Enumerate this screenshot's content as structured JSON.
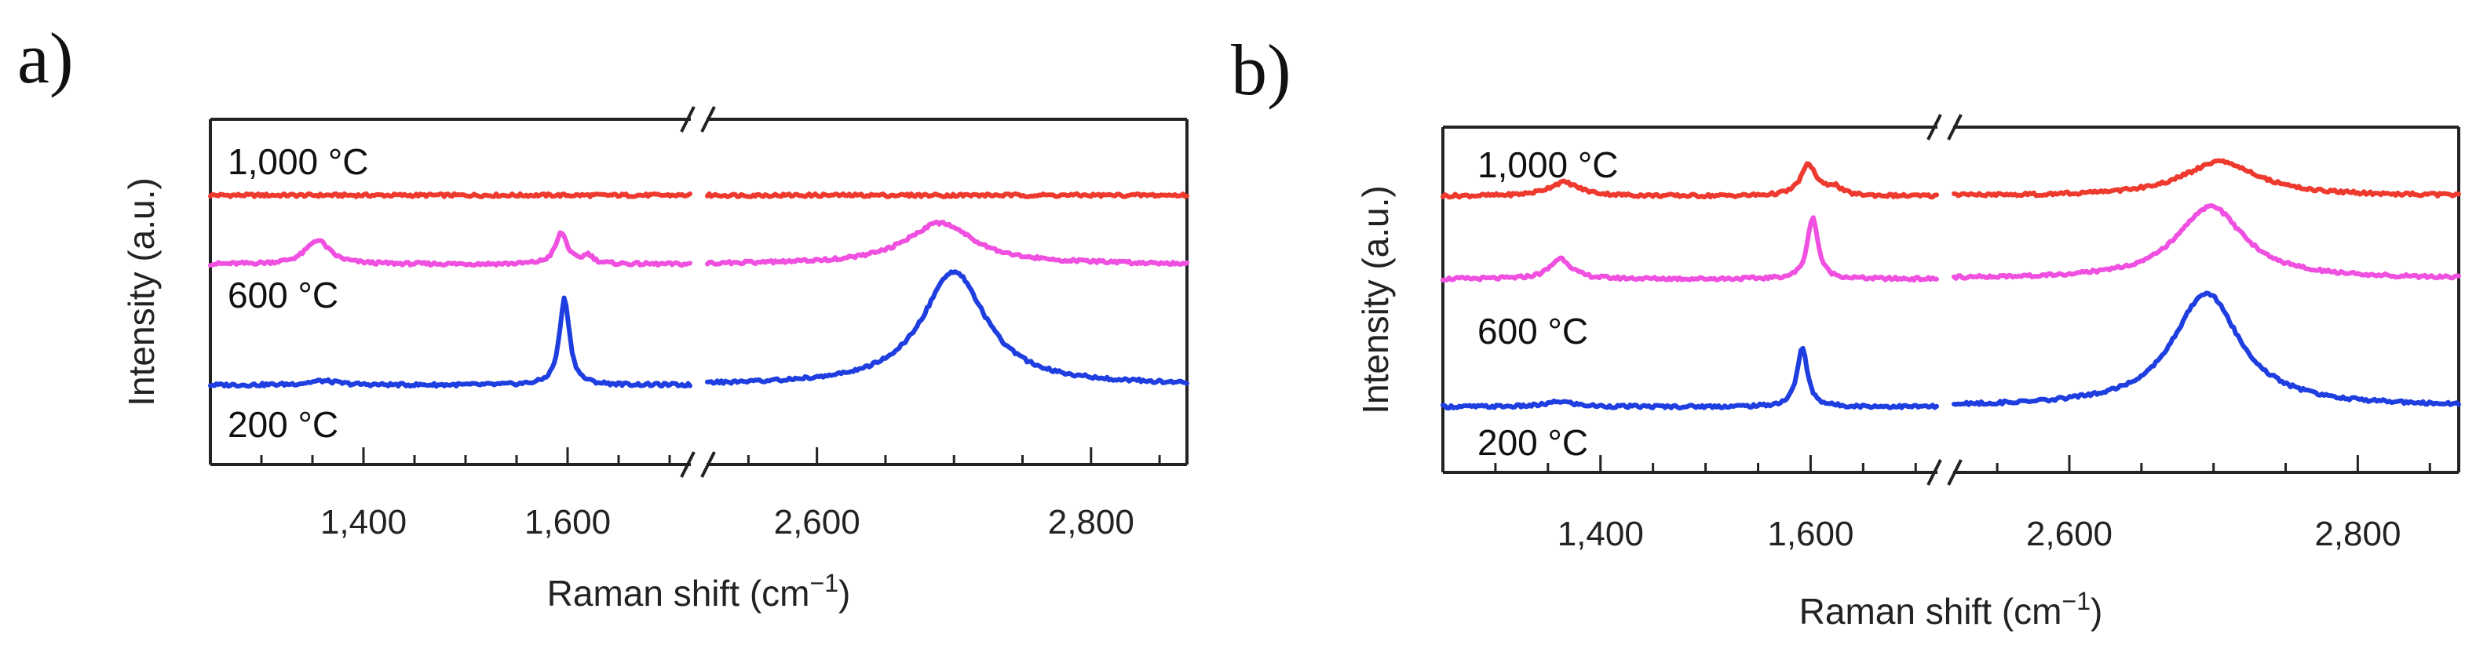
{
  "figure": {
    "panel_a_label": "a)",
    "panel_b_label": "b)"
  },
  "chart_data": [
    {
      "type": "line",
      "panel": "a)",
      "title": "",
      "xlabel": "Raman shift (cm",
      "xlabel_superscript": "−1",
      "xlabel_suffix": ")",
      "ylabel": "Intensity (a.u.)",
      "x_axis": {
        "broken": true,
        "segments": [
          {
            "range": [
              1250,
              1720
            ],
            "ticks": [
              1400,
              1600
            ],
            "tick_labels": [
              "1,400",
              "1,600"
            ],
            "minor_step": 50
          },
          {
            "range": [
              2520,
              2870
            ],
            "ticks": [
              2600,
              2800
            ],
            "tick_labels": [
              "2,600",
              "2,800"
            ],
            "minor_step": 50
          }
        ]
      },
      "y_range": [
        0,
        100
      ],
      "series": [
        {
          "name": "1,000 °C",
          "color": "#ee3a2e",
          "baseline": 78,
          "peaks": []
        },
        {
          "name": "600 °C",
          "color": "#f050e0",
          "baseline": 58,
          "peaks": [
            {
              "x": 1355,
              "height": 7,
              "width": 14
            },
            {
              "x": 1594,
              "height": 9,
              "width": 7
            },
            {
              "x": 1620,
              "height": 2.5,
              "width": 6
            },
            {
              "x": 2690,
              "height": 12,
              "width": 30
            }
          ]
        },
        {
          "name": "200 °C",
          "color": "#1f3ee0",
          "baseline": 23,
          "peaks": [
            {
              "x": 1360,
              "height": 1.2,
              "width": 18
            },
            {
              "x": 1597,
              "height": 25,
              "width": 6
            },
            {
              "x": 2700,
              "height": 33,
              "width": 28
            }
          ]
        }
      ],
      "series_labels": [
        "1,000 °C",
        "600 °C",
        "200 °C"
      ]
    },
    {
      "type": "line",
      "panel": "b)",
      "title": "",
      "xlabel": "Raman shift (cm",
      "xlabel_superscript": "−1",
      "xlabel_suffix": ")",
      "ylabel": "Intensity (a.u.)",
      "x_axis": {
        "broken": true,
        "segments": [
          {
            "range": [
              1250,
              1720
            ],
            "ticks": [
              1400,
              1600
            ],
            "tick_labels": [
              "1,400",
              "1,600"
            ],
            "minor_step": 50
          },
          {
            "range": [
              2520,
              2870
            ],
            "ticks": [
              2600,
              2800
            ],
            "tick_labels": [
              "2,600",
              "2,800"
            ],
            "minor_step": 50
          }
        ]
      },
      "y_range": [
        0,
        100
      ],
      "series": [
        {
          "name": "1,000 °C",
          "color": "#ee3a2e",
          "baseline": 80,
          "peaks": [
            {
              "x": 1365,
              "height": 4,
              "width": 18
            },
            {
              "x": 1598,
              "height": 9,
              "width": 9
            },
            {
              "x": 1622,
              "height": 2.5,
              "width": 8
            },
            {
              "x": 2705,
              "height": 10,
              "width": 32
            }
          ]
        },
        {
          "name": "600 °C",
          "color": "#f050e0",
          "baseline": 56,
          "peaks": [
            {
              "x": 1362,
              "height": 6,
              "width": 12
            },
            {
              "x": 1602,
              "height": 18,
              "width": 6
            },
            {
              "x": 2698,
              "height": 21,
              "width": 28
            }
          ]
        },
        {
          "name": "200 °C",
          "color": "#1f3ee0",
          "baseline": 19,
          "peaks": [
            {
              "x": 1362,
              "height": 1.5,
              "width": 15
            },
            {
              "x": 1592,
              "height": 17,
              "width": 6
            },
            {
              "x": 2695,
              "height": 33,
              "width": 28
            }
          ]
        }
      ],
      "series_labels": [
        "1,000 °C",
        "600 °C",
        "200 °C"
      ]
    }
  ]
}
